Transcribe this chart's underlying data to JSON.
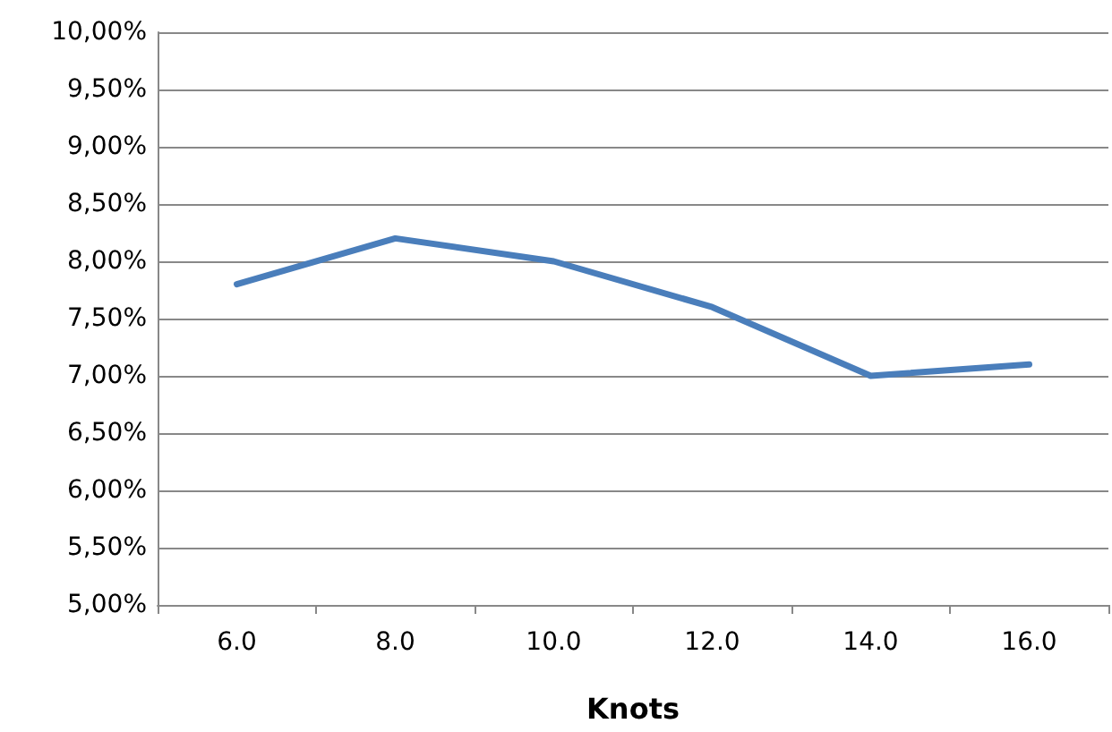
{
  "chart_data": {
    "type": "line",
    "xlabel": "Knots",
    "categories": [
      "6.0",
      "8.0",
      "10.0",
      "12.0",
      "14.0",
      "16.0"
    ],
    "series": [
      {
        "color": "#4a7ebb",
        "values": [
          7.8,
          8.2,
          8.0,
          7.6,
          7.0,
          7.1
        ]
      }
    ],
    "ylim": [
      5,
      10
    ],
    "yticks": [
      {
        "value": 5,
        "label": "5,00%"
      },
      {
        "value": 5.5,
        "label": "5,50%"
      },
      {
        "value": 6,
        "label": "6,00%"
      },
      {
        "value": 6.5,
        "label": "6,50%"
      },
      {
        "value": 7,
        "label": "7,00%"
      },
      {
        "value": 7.5,
        "label": "7,50%"
      },
      {
        "value": 8,
        "label": "8,00%"
      },
      {
        "value": 8.5,
        "label": "8,50%"
      },
      {
        "value": 9,
        "label": "9,00%"
      },
      {
        "value": 9.5,
        "label": "9,50%"
      },
      {
        "value": 10,
        "label": "10,00%"
      }
    ],
    "grid": "y",
    "marker": "none",
    "line_style": "solid"
  }
}
